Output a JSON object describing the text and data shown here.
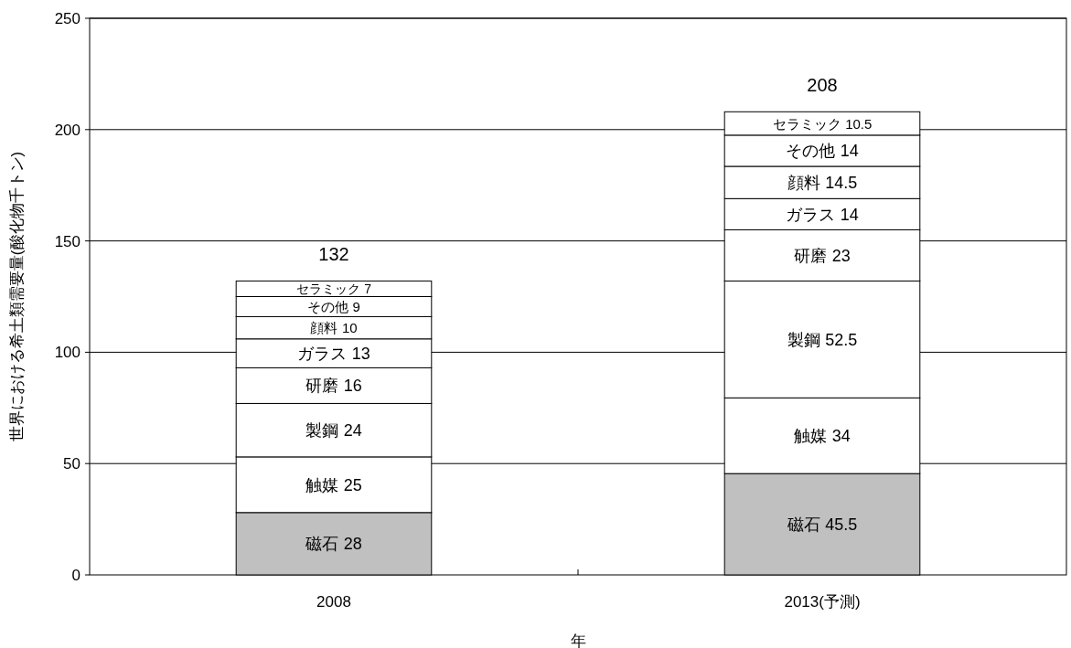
{
  "chart_data": {
    "type": "bar",
    "stacked": true,
    "xlabel": "年",
    "ylabel": "世界における希土類需要量(酸化物千トン)",
    "categories": [
      "2008",
      "2013(予測)"
    ],
    "series": [
      {
        "name": "磁石",
        "color": "#c0c0c0",
        "values": [
          28,
          45.5
        ]
      },
      {
        "name": "触媒",
        "color": "#ffffff",
        "values": [
          25,
          34
        ]
      },
      {
        "name": "製鋼",
        "color": "#ffffff",
        "values": [
          24,
          52.5
        ]
      },
      {
        "name": "研磨",
        "color": "#ffffff",
        "values": [
          16,
          23
        ]
      },
      {
        "name": "ガラス",
        "color": "#ffffff",
        "values": [
          13,
          14
        ]
      },
      {
        "name": "顔料",
        "color": "#ffffff",
        "values": [
          10,
          14.5
        ]
      },
      {
        "name": "その他",
        "color": "#ffffff",
        "values": [
          9,
          14
        ]
      },
      {
        "name": "セラミック",
        "color": "#ffffff",
        "values": [
          7,
          10.5
        ]
      }
    ],
    "totals": [
      "132",
      "208"
    ],
    "data_labels": true,
    "ylim": [
      0,
      250
    ],
    "yticks": [
      0,
      50,
      100,
      150,
      200,
      250
    ],
    "grid": "y"
  }
}
